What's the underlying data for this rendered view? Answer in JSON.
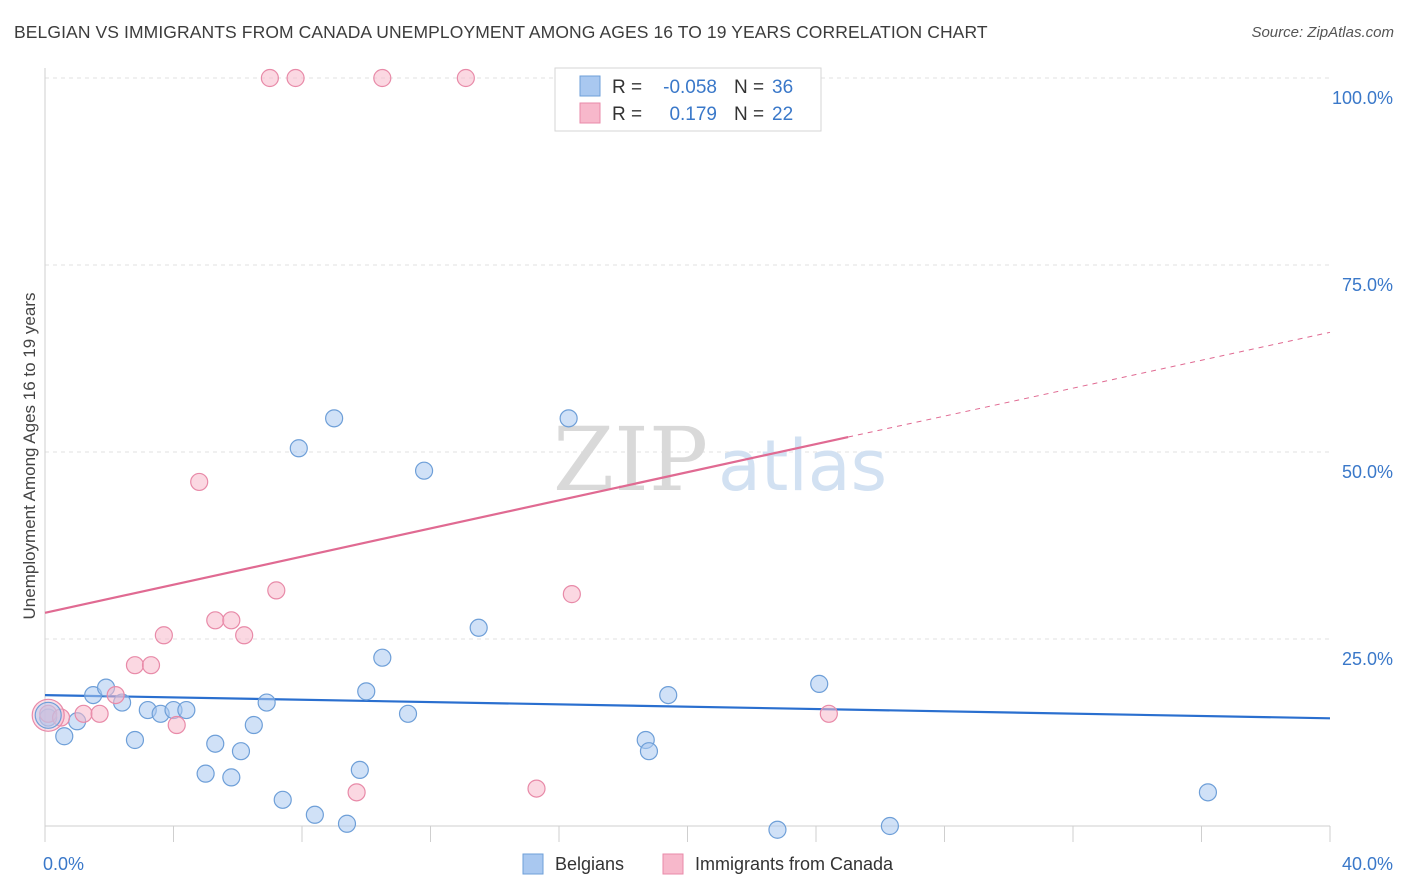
{
  "title": "BELGIAN VS IMMIGRANTS FROM CANADA UNEMPLOYMENT AMONG AGES 16 TO 19 YEARS CORRELATION CHART",
  "source": "Source: ZipAtlas.com",
  "watermark": {
    "part1": "ZIP",
    "part2": "atlas"
  },
  "legend": {
    "r_label": "R =",
    "n_label": "N =",
    "rows": [
      {
        "r": "-0.058",
        "n": "36",
        "color": "#a9c8f0",
        "stroke": "#6e9fd8"
      },
      {
        "r": "0.179",
        "n": "22",
        "color": "#f7b8cb",
        "stroke": "#e88aa8"
      }
    ]
  },
  "chart_data": {
    "type": "scatter",
    "ylabel": "Unemployment Among Ages 16 to 19 years",
    "x_range": [
      0,
      40
    ],
    "y_range": [
      0,
      100
    ],
    "x_tick_labels": {
      "min": "0.0%",
      "max": "40.0%"
    },
    "y_tick_labels": [
      "100.0%",
      "75.0%",
      "50.0%",
      "25.0%"
    ],
    "y_tick_values": [
      100,
      75,
      50,
      25
    ],
    "grid": "horizontal dashed",
    "series": [
      {
        "name": "Belgians",
        "color": "#a9c8f0",
        "stroke": "#6e9fd8",
        "line_color": "#2a6fcf",
        "trend": {
          "x0": 0,
          "y0": 17.5,
          "x1": 40,
          "y1": 14.4
        },
        "points": [
          [
            0.1,
            14.5
          ],
          [
            0.6,
            12.0
          ],
          [
            1.0,
            14.0
          ],
          [
            1.5,
            17.5
          ],
          [
            1.9,
            18.5
          ],
          [
            2.4,
            16.5
          ],
          [
            2.8,
            11.5
          ],
          [
            3.2,
            15.5
          ],
          [
            3.6,
            15.0
          ],
          [
            4.0,
            15.5
          ],
          [
            4.4,
            15.5
          ],
          [
            5.0,
            7.0
          ],
          [
            5.3,
            11.0
          ],
          [
            5.8,
            6.5
          ],
          [
            6.1,
            10.0
          ],
          [
            6.5,
            13.5
          ],
          [
            6.9,
            16.5
          ],
          [
            7.4,
            3.5
          ],
          [
            7.9,
            50.5
          ],
          [
            8.4,
            1.5
          ],
          [
            9.0,
            54.5
          ],
          [
            9.4,
            0.3
          ],
          [
            9.8,
            7.5
          ],
          [
            10.0,
            18.0
          ],
          [
            10.5,
            22.5
          ],
          [
            11.3,
            15.0
          ],
          [
            11.8,
            47.5
          ],
          [
            13.5,
            26.5
          ],
          [
            16.3,
            54.5
          ],
          [
            18.7,
            11.5
          ],
          [
            18.8,
            10.0
          ],
          [
            19.4,
            17.5
          ],
          [
            24.1,
            19.0
          ],
          [
            22.8,
            -0.5
          ],
          [
            26.3,
            0.0
          ],
          [
            36.2,
            4.5
          ]
        ]
      },
      {
        "name": "Immigrants from Canada",
        "color": "#f7b8cb",
        "stroke": "#e88aa8",
        "line_color": "#e06a92",
        "trend": {
          "x0": 0,
          "y0": 28.5,
          "x1": 25,
          "y1": 52.0
        },
        "trend_dash": {
          "x0": 25,
          "y0": 52.0,
          "x1": 40,
          "y1": 66.0
        },
        "points": [
          [
            0.1,
            15.0
          ],
          [
            0.5,
            14.5
          ],
          [
            1.2,
            15.0
          ],
          [
            1.7,
            15.0
          ],
          [
            2.2,
            17.5
          ],
          [
            2.8,
            21.5
          ],
          [
            3.3,
            21.5
          ],
          [
            3.7,
            25.5
          ],
          [
            4.1,
            13.5
          ],
          [
            4.8,
            46.0
          ],
          [
            5.3,
            27.5
          ],
          [
            5.8,
            27.5
          ],
          [
            6.2,
            25.5
          ],
          [
            7.2,
            31.5
          ],
          [
            7.0,
            100.0
          ],
          [
            7.8,
            100.0
          ],
          [
            9.7,
            4.5
          ],
          [
            10.5,
            100.0
          ],
          [
            13.1,
            100.0
          ],
          [
            15.3,
            5.0
          ],
          [
            16.4,
            31.0
          ],
          [
            24.4,
            15.0
          ]
        ]
      }
    ]
  },
  "bottom_legend": [
    "Belgians",
    "Immigrants from Canada"
  ]
}
